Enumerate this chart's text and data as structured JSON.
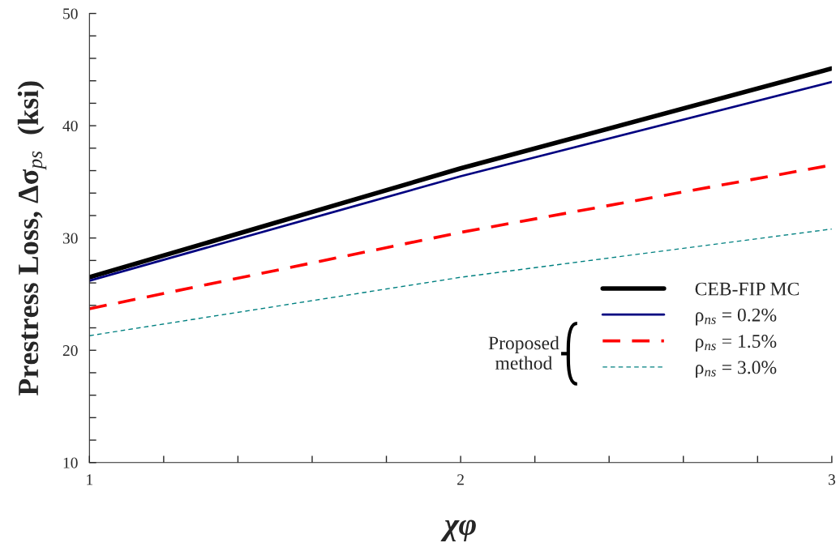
{
  "chart_data": {
    "type": "line",
    "xlabel": "χφ",
    "ylabel": "Prestress Loss, Δσ$_{ps}$  (ksi)",
    "x": [
      1,
      2,
      3
    ],
    "series": [
      {
        "name": "CEB-FIP MC",
        "color": "#000000",
        "values": [
          26.5,
          36.2,
          45.1
        ],
        "line_style": "solid"
      },
      {
        "name": "ρ$_{ns}$ = 0.2%",
        "color": "#000080",
        "values": [
          26.2,
          35.5,
          43.9
        ],
        "line_style": "solid"
      },
      {
        "name": "ρ$_{ns}$ = 1.5%",
        "color": "#ff0000",
        "values": [
          23.7,
          30.5,
          36.5
        ],
        "line_style": "dashed"
      },
      {
        "name": "ρ$_{ns}$ = 3.0%",
        "color": "#008080",
        "values": [
          21.3,
          26.5,
          30.8
        ],
        "line_style": "dashed"
      }
    ],
    "xlim": [
      1,
      3
    ],
    "ylim": [
      10,
      50
    ],
    "xticks": [
      1,
      {
        "value": 1.2,
        "label": null
      },
      {
        "value": 1.4,
        "label": null
      },
      {
        "value": 1.6,
        "label": null
      },
      {
        "value": 1.8,
        "label": null
      },
      2,
      {
        "value": 2.2,
        "label": null
      },
      {
        "value": 2.4,
        "label": null
      },
      {
        "value": 2.6,
        "label": null
      },
      {
        "value": 2.8,
        "label": null
      },
      3
    ],
    "yticks": [
      10,
      {
        "value": 12,
        "label": null
      },
      {
        "value": 14,
        "label": null
      },
      {
        "value": 16,
        "label": null
      },
      {
        "value": 18,
        "label": null
      },
      20,
      {
        "value": 22,
        "label": null
      },
      {
        "value": 24,
        "label": null
      },
      {
        "value": 26,
        "label": null
      },
      {
        "value": 28,
        "label": null
      },
      30,
      {
        "value": 32,
        "label": null
      },
      {
        "value": 34,
        "label": null
      },
      {
        "value": 36,
        "label": null
      },
      {
        "value": 38,
        "label": null
      },
      40,
      {
        "value": 42,
        "label": null
      },
      {
        "value": 44,
        "label": null
      },
      {
        "value": 46,
        "label": null
      },
      {
        "value": 48,
        "label": null
      },
      50
    ],
    "annotations": [
      "Proposed\nmethod"
    ],
    "grid": false,
    "legend": "lower right",
    "marker": "none"
  }
}
